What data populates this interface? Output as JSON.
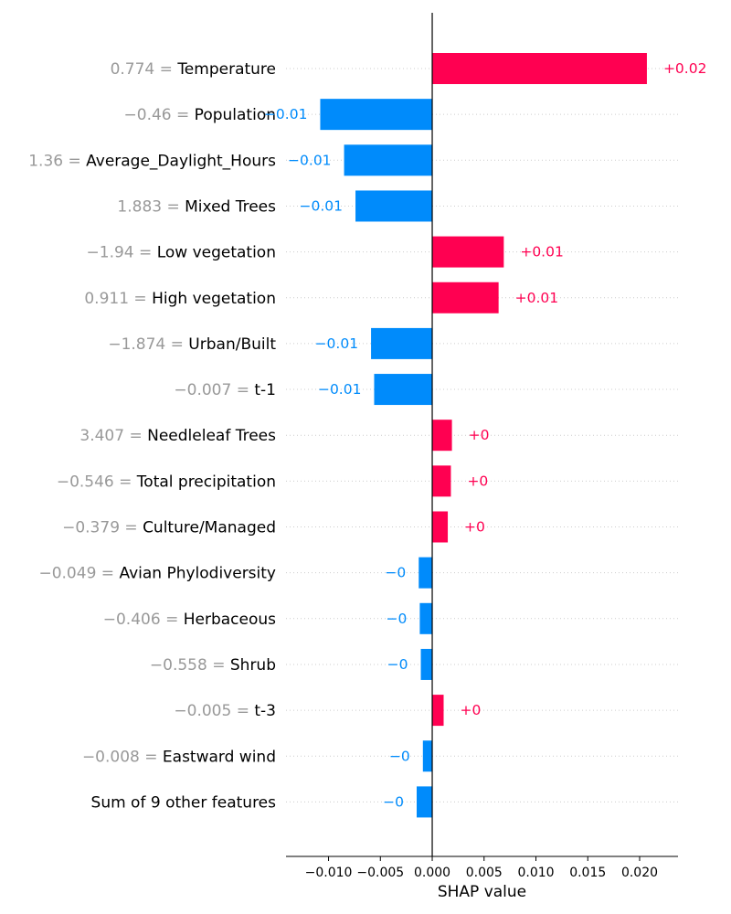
{
  "chart_data": {
    "type": "bar",
    "orientation": "horizontal",
    "title": "",
    "xlabel": "SHAP value",
    "ylabel": "",
    "xlim": [
      -0.0141,
      0.0237
    ],
    "x_ticks": [
      -0.01,
      -0.005,
      0.0,
      0.005,
      0.01,
      0.015,
      0.02
    ],
    "x_tick_labels": [
      "−0.010",
      "−0.005",
      "0.000",
      "0.005",
      "0.010",
      "0.015",
      "0.020"
    ],
    "grid": "horizontal dotted",
    "colors": {
      "positive": "#ff0051",
      "negative": "#008bfb",
      "feature_value": "#999999",
      "feature_name": "#000000",
      "grid": "#cccccc",
      "axis": "#000000"
    },
    "rows": [
      {
        "feature_value": "0.774 =",
        "feature": "Temperature",
        "shap": 0.0207,
        "label": "+0.02"
      },
      {
        "feature_value": "−0.46 =",
        "feature": "Population",
        "shap": -0.0108,
        "label": "−0.01"
      },
      {
        "feature_value": "1.36 =",
        "feature": "Average_Daylight_Hours",
        "shap": -0.0085,
        "label": "−0.01"
      },
      {
        "feature_value": "1.883 =",
        "feature": "Mixed Trees",
        "shap": -0.0074,
        "label": "−0.01"
      },
      {
        "feature_value": "−1.94 =",
        "feature": "Low vegetation",
        "shap": 0.0069,
        "label": "+0.01"
      },
      {
        "feature_value": "0.911 =",
        "feature": "High vegetation",
        "shap": 0.0064,
        "label": "+0.01"
      },
      {
        "feature_value": "−1.874 =",
        "feature": "Urban/Built",
        "shap": -0.0059,
        "label": "−0.01"
      },
      {
        "feature_value": "−0.007 =",
        "feature": "t-1",
        "shap": -0.0056,
        "label": "−0.01"
      },
      {
        "feature_value": "3.407 =",
        "feature": "Needleleaf Trees",
        "shap": 0.0019,
        "label": "+0"
      },
      {
        "feature_value": "−0.546 =",
        "feature": "Total precipitation",
        "shap": 0.0018,
        "label": "+0"
      },
      {
        "feature_value": "−0.379 =",
        "feature": "Culture/Managed",
        "shap": 0.0015,
        "label": "+0"
      },
      {
        "feature_value": "−0.049 =",
        "feature": "Avian Phylodiversity",
        "shap": -0.0013,
        "label": "−0"
      },
      {
        "feature_value": "−0.406 =",
        "feature": "Herbaceous",
        "shap": -0.0012,
        "label": "−0"
      },
      {
        "feature_value": "−0.558 =",
        "feature": "Shrub",
        "shap": -0.0011,
        "label": "−0"
      },
      {
        "feature_value": "−0.005 =",
        "feature": "t-3",
        "shap": 0.0011,
        "label": "+0"
      },
      {
        "feature_value": "−0.008 =",
        "feature": "Eastward wind",
        "shap": -0.0009,
        "label": "−0"
      },
      {
        "feature_value": "",
        "feature": "Sum of 9 other features",
        "shap": -0.0015,
        "label": "−0"
      }
    ]
  }
}
